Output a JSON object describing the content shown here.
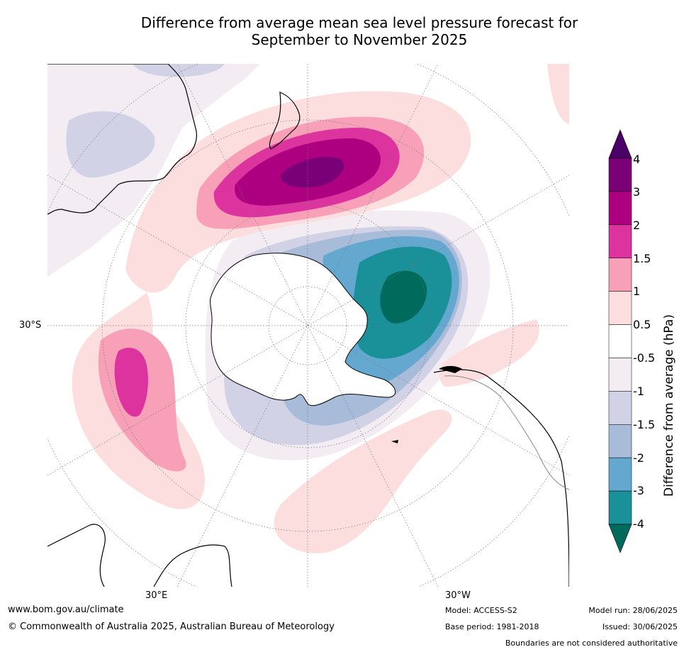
{
  "title_line1": "Difference from average mean sea level pressure forecast for",
  "title_line2": "September to November 2025",
  "lat_labels": {
    "lat_30s": "30°S"
  },
  "lon_labels": {
    "lon_30e": "30°E",
    "lon_30w": "30°W"
  },
  "colorbar": {
    "title": "Difference from average (hPa)",
    "levels": [
      "4",
      "3",
      "2",
      "1.5",
      "1",
      "0.5",
      "-0.5",
      "-1",
      "-1.5",
      "-2",
      "-3",
      "-4"
    ],
    "colors": [
      "#4b0067",
      "#7a0077",
      "#ad0080",
      "#dc339e",
      "#f8a0b8",
      "#fcdede",
      "#ffffff",
      "#f3ecf3",
      "#d2d2e6",
      "#a8bcd9",
      "#65a8cf",
      "#1a9098",
      "#006b5c"
    ]
  },
  "footer": {
    "url": "www.bom.gov.au/climate",
    "copyright": "© Commonwealth of Australia 2025, Australian Bureau of Meteorology",
    "model": "Model: ACCESS-S2",
    "base_period": "Base period: 1981-2018",
    "model_run": "Model run: 28/06/2025",
    "issued": "Issued: 30/06/2025",
    "disclaimer": "Boundaries are not considered authoritative"
  }
}
